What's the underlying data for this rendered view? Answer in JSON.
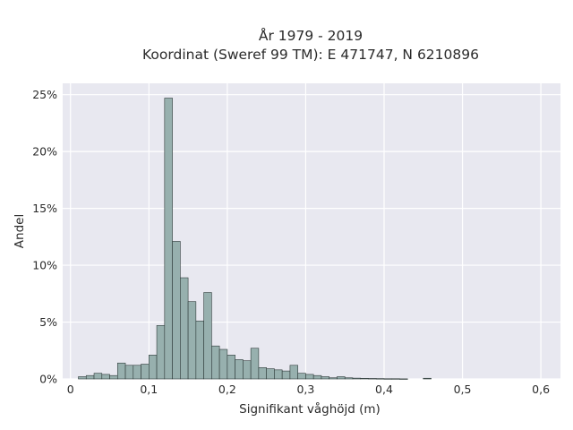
{
  "chart_data": {
    "type": "bar",
    "title_line1": "År 1979 - 2019",
    "title_line2": "Koordinat (Sweref 99 TM): E 471747, N 6210896",
    "xlabel": "Signifikant våghöjd (m)",
    "ylabel": "Andel",
    "xlim": [
      -0.01,
      0.625
    ],
    "ylim": [
      0,
      0.26
    ],
    "x_ticks": [
      {
        "value": 0,
        "label": "0"
      },
      {
        "value": 0.1,
        "label": "0,1"
      },
      {
        "value": 0.2,
        "label": "0,2"
      },
      {
        "value": 0.3,
        "label": "0,3"
      },
      {
        "value": 0.4,
        "label": "0,4"
      },
      {
        "value": 0.5,
        "label": "0,5"
      },
      {
        "value": 0.6,
        "label": "0,6"
      }
    ],
    "y_ticks": [
      {
        "value": 0,
        "label": "0%"
      },
      {
        "value": 0.05,
        "label": "5%"
      },
      {
        "value": 0.1,
        "label": "10%"
      },
      {
        "value": 0.15,
        "label": "15%"
      },
      {
        "value": 0.2,
        "label": "20%"
      },
      {
        "value": 0.25,
        "label": "25%"
      }
    ],
    "bin_width": 0.01,
    "bin_start": 0.01,
    "values": [
      0.002,
      0.003,
      0.005,
      0.004,
      0.003,
      0.014,
      0.012,
      0.012,
      0.013,
      0.021,
      0.047,
      0.247,
      0.121,
      0.089,
      0.068,
      0.051,
      0.076,
      0.029,
      0.026,
      0.021,
      0.017,
      0.016,
      0.027,
      0.01,
      0.009,
      0.008,
      0.007,
      0.012,
      0.005,
      0.004,
      0.003,
      0.002,
      0.001,
      0.002,
      0.001,
      0.0007,
      0.0005,
      0.0004,
      0.0003,
      0.0002,
      0.0002,
      0.0001,
      0,
      0,
      0.0006
    ],
    "grid": true,
    "colors": {
      "bar_fill": "#97b0ae",
      "bar_stroke": "#2f3b3a",
      "plot_background": "#e8e8f0",
      "grid": "#ffffff"
    }
  }
}
